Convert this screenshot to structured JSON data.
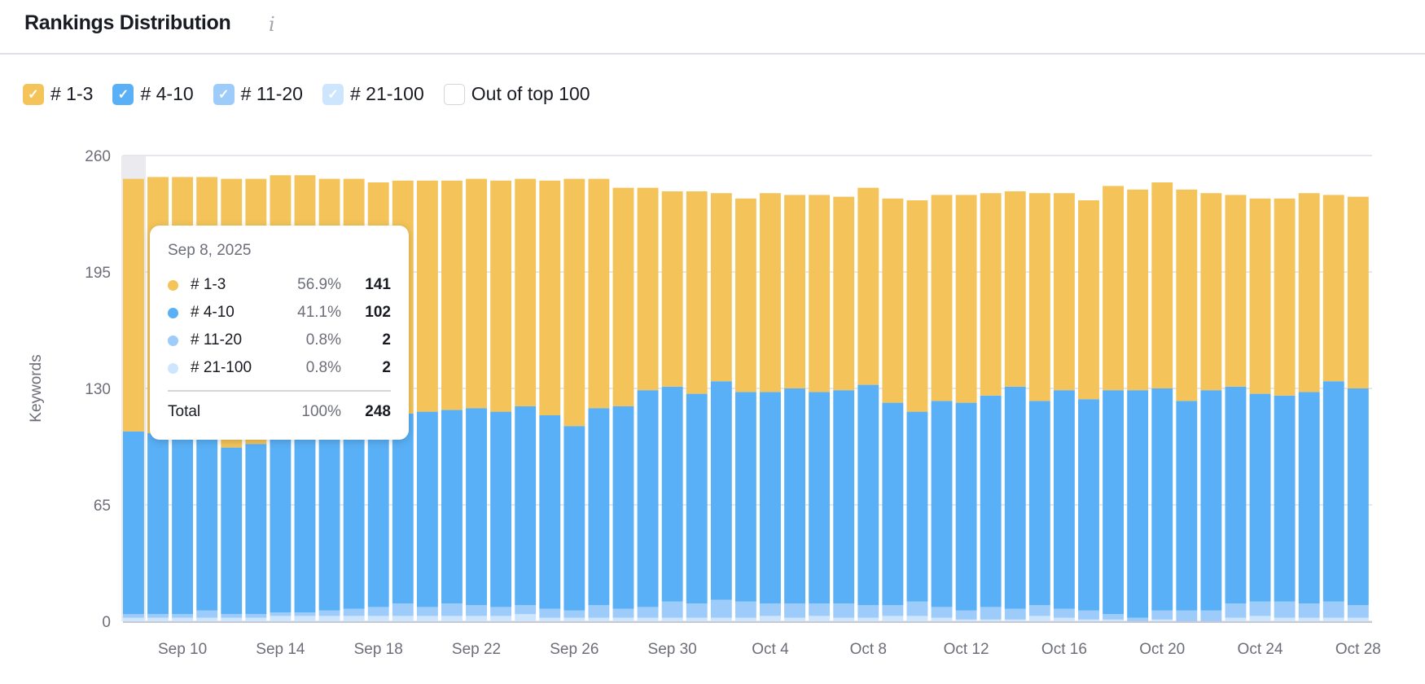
{
  "header": {
    "title": "Rankings Distribution",
    "info_icon": "info-icon"
  },
  "legend": [
    {
      "label": "# 1-3",
      "color": "#F4C45A",
      "checked": true
    },
    {
      "label": "# 4-10",
      "color": "#59B0F6",
      "checked": true
    },
    {
      "label": "# 11-20",
      "color": "#9DCBFA",
      "checked": true
    },
    {
      "label": "# 21-100",
      "color": "#CDE5FD",
      "checked": true
    },
    {
      "label": "Out of top 100",
      "color": "#FFFFFF",
      "checked": false
    }
  ],
  "tooltip": {
    "date": "Sep 8, 2025",
    "rows": [
      {
        "label": "# 1-3",
        "pct": "56.9%",
        "value": "141",
        "color": "#F4C45A"
      },
      {
        "label": "# 4-10",
        "pct": "41.1%",
        "value": "102",
        "color": "#59B0F6"
      },
      {
        "label": "# 11-20",
        "pct": "0.8%",
        "value": "2",
        "color": "#9DCBFA"
      },
      {
        "label": "# 21-100",
        "pct": "0.8%",
        "value": "2",
        "color": "#CDE5FD"
      }
    ],
    "total": {
      "label": "Total",
      "pct": "100%",
      "value": "248"
    }
  },
  "chart_data": {
    "type": "bar",
    "stacked": true,
    "ylabel": "Keywords",
    "ylim": [
      0,
      260
    ],
    "yticks": [
      0,
      65,
      130,
      195,
      260
    ],
    "grid": true,
    "highlighted_category": "Sep 8",
    "categories": [
      "Sep 8",
      "Sep 9",
      "Sep 10",
      "Sep 11",
      "Sep 12",
      "Sep 13",
      "Sep 14",
      "Sep 15",
      "Sep 16",
      "Sep 17",
      "Sep 18",
      "Sep 19",
      "Sep 20",
      "Sep 21",
      "Sep 22",
      "Sep 23",
      "Sep 24",
      "Sep 25",
      "Sep 26",
      "Sep 27",
      "Sep 28",
      "Sep 29",
      "Sep 30",
      "Oct 1",
      "Oct 2",
      "Oct 3",
      "Oct 4",
      "Oct 5",
      "Oct 6",
      "Oct 7",
      "Oct 8",
      "Oct 9",
      "Oct 10",
      "Oct 11",
      "Oct 12",
      "Oct 13",
      "Oct 14",
      "Oct 15",
      "Oct 16",
      "Oct 17",
      "Oct 18",
      "Oct 19",
      "Oct 20",
      "Oct 21",
      "Oct 22",
      "Oct 23",
      "Oct 24",
      "Oct 25",
      "Oct 26",
      "Oct 27",
      "Oct 28"
    ],
    "xtick_labels": [
      "Sep 10",
      "Sep 14",
      "Sep 18",
      "Sep 22",
      "Sep 26",
      "Sep 30",
      "Oct 4",
      "Oct 8",
      "Oct 12",
      "Oct 16",
      "Oct 20",
      "Oct 24",
      "Oct 28"
    ],
    "series": [
      {
        "name": "# 21-100",
        "color": "#CDE5FD",
        "values": [
          2,
          2,
          2,
          2,
          2,
          2,
          3,
          3,
          3,
          3,
          3,
          3,
          3,
          3,
          3,
          3,
          4,
          2,
          2,
          2,
          2,
          2,
          2,
          2,
          2,
          2,
          3,
          2,
          3,
          2,
          2,
          3,
          3,
          2,
          1,
          1,
          1,
          3,
          2,
          1,
          1,
          0,
          1,
          0,
          0,
          2,
          3,
          2,
          2,
          2,
          2
        ]
      },
      {
        "name": "# 11-20",
        "color": "#9DCBFA",
        "values": [
          2,
          2,
          2,
          4,
          2,
          2,
          2,
          2,
          3,
          4,
          5,
          7,
          5,
          7,
          6,
          5,
          5,
          5,
          4,
          7,
          5,
          6,
          9,
          8,
          10,
          9,
          7,
          8,
          7,
          8,
          7,
          6,
          8,
          6,
          5,
          7,
          6,
          6,
          5,
          5,
          3,
          2,
          5,
          6,
          6,
          8,
          8,
          9,
          8,
          9,
          7
        ]
      },
      {
        "name": "# 4-10",
        "color": "#59B0F6",
        "values": [
          102,
          101,
          101,
          100,
          93,
          95,
          99,
          99,
          99,
          98,
          98,
          106,
          109,
          108,
          110,
          109,
          111,
          108,
          103,
          110,
          113,
          121,
          120,
          117,
          122,
          117,
          118,
          120,
          118,
          119,
          123,
          113,
          106,
          115,
          116,
          118,
          124,
          114,
          122,
          118,
          125,
          127,
          124,
          117,
          123,
          121,
          116,
          115,
          118,
          123,
          121
        ]
      },
      {
        "name": "# 1-3",
        "color": "#F4C45A",
        "values": [
          141,
          143,
          143,
          142,
          150,
          148,
          145,
          145,
          142,
          142,
          139,
          130,
          129,
          128,
          128,
          129,
          127,
          131,
          138,
          128,
          122,
          113,
          109,
          113,
          105,
          108,
          111,
          108,
          110,
          108,
          110,
          114,
          118,
          115,
          116,
          113,
          109,
          116,
          110,
          111,
          114,
          112,
          115,
          118,
          110,
          107,
          109,
          110,
          111,
          104,
          107
        ]
      }
    ]
  }
}
